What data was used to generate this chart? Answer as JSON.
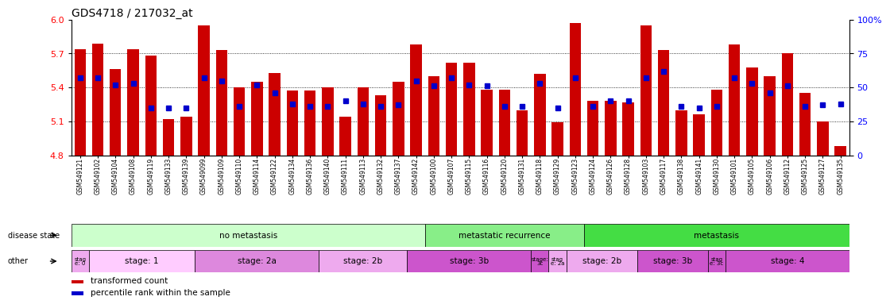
{
  "title": "GDS4718 / 217032_at",
  "samples": [
    "GSM549121",
    "GSM549102",
    "GSM549104",
    "GSM549108",
    "GSM549119",
    "GSM549133",
    "GSM549139",
    "GSM549099",
    "GSM549109",
    "GSM549110",
    "GSM549114",
    "GSM549122",
    "GSM549134",
    "GSM549136",
    "GSM549140",
    "GSM549111",
    "GSM549113",
    "GSM549132",
    "GSM549137",
    "GSM549142",
    "GSM549100",
    "GSM549107",
    "GSM549115",
    "GSM549116",
    "GSM549120",
    "GSM549131",
    "GSM549118",
    "GSM549129",
    "GSM549123",
    "GSM549124",
    "GSM549126",
    "GSM549128",
    "GSM549103",
    "GSM549117",
    "GSM549138",
    "GSM549141",
    "GSM549130",
    "GSM549101",
    "GSM549105",
    "GSM549106",
    "GSM549112",
    "GSM549125",
    "GSM549127",
    "GSM549135"
  ],
  "bar_values": [
    5.74,
    5.79,
    5.56,
    5.74,
    5.68,
    5.12,
    5.14,
    5.95,
    5.73,
    5.4,
    5.45,
    5.53,
    5.37,
    5.37,
    5.4,
    5.14,
    5.4,
    5.33,
    5.45,
    5.78,
    5.5,
    5.62,
    5.62,
    5.38,
    5.38,
    5.2,
    5.52,
    5.09,
    5.97,
    5.28,
    5.28,
    5.27,
    5.95,
    5.73,
    5.2,
    5.16,
    5.38,
    5.78,
    5.58,
    5.5,
    5.7,
    5.35,
    5.1,
    4.88
  ],
  "percentile_values": [
    57,
    57,
    52,
    53,
    35,
    35,
    35,
    57,
    55,
    36,
    52,
    46,
    38,
    36,
    36,
    40,
    38,
    36,
    37,
    55,
    51,
    57,
    52,
    51,
    36,
    36,
    53,
    35,
    57,
    36,
    40,
    40,
    57,
    62,
    36,
    35,
    36,
    57,
    53,
    46,
    51,
    36,
    37,
    38
  ],
  "ylim_left": [
    4.8,
    6.0
  ],
  "ylim_right": [
    0,
    100
  ],
  "yticks_left": [
    4.8,
    5.1,
    5.4,
    5.7,
    6.0
  ],
  "yticks_right": [
    0,
    25,
    50,
    75,
    100
  ],
  "bar_color": "#cc0000",
  "percentile_color": "#0000cc",
  "disease_state_groups": [
    {
      "label": "no metastasis",
      "start": 0,
      "end": 19,
      "color": "#ccffcc"
    },
    {
      "label": "metastatic recurrence",
      "start": 20,
      "end": 28,
      "color": "#88ee88"
    },
    {
      "label": "metastasis",
      "start": 29,
      "end": 43,
      "color": "#44dd44"
    }
  ],
  "stage_groups": [
    {
      "label": "stag\ne: 0",
      "start": 0,
      "end": 0
    },
    {
      "label": "stage: 1",
      "start": 1,
      "end": 6
    },
    {
      "label": "stage: 2a",
      "start": 7,
      "end": 13
    },
    {
      "label": "stage: 2b",
      "start": 14,
      "end": 18
    },
    {
      "label": "stage: 3b",
      "start": 19,
      "end": 25
    },
    {
      "label": "stage:\n3c",
      "start": 26,
      "end": 26
    },
    {
      "label": "stag\ne: 2a",
      "start": 27,
      "end": 27
    },
    {
      "label": "stage: 2b",
      "start": 28,
      "end": 31
    },
    {
      "label": "stage: 3b",
      "start": 32,
      "end": 35
    },
    {
      "label": "stag\ne: 3c",
      "start": 36,
      "end": 36
    },
    {
      "label": "stage: 4",
      "start": 37,
      "end": 43
    }
  ],
  "stage_colors": [
    "#eeaaee",
    "#ffccff",
    "#dd88dd",
    "#eeaaee",
    "#cc55cc",
    "#cc55cc",
    "#eeaaee",
    "#eeaaee",
    "#cc55cc",
    "#cc55cc",
    "#cc55cc"
  ],
  "legend_items": [
    {
      "label": "transformed count",
      "color": "#cc0000"
    },
    {
      "label": "percentile rank within the sample",
      "color": "#0000cc"
    }
  ]
}
